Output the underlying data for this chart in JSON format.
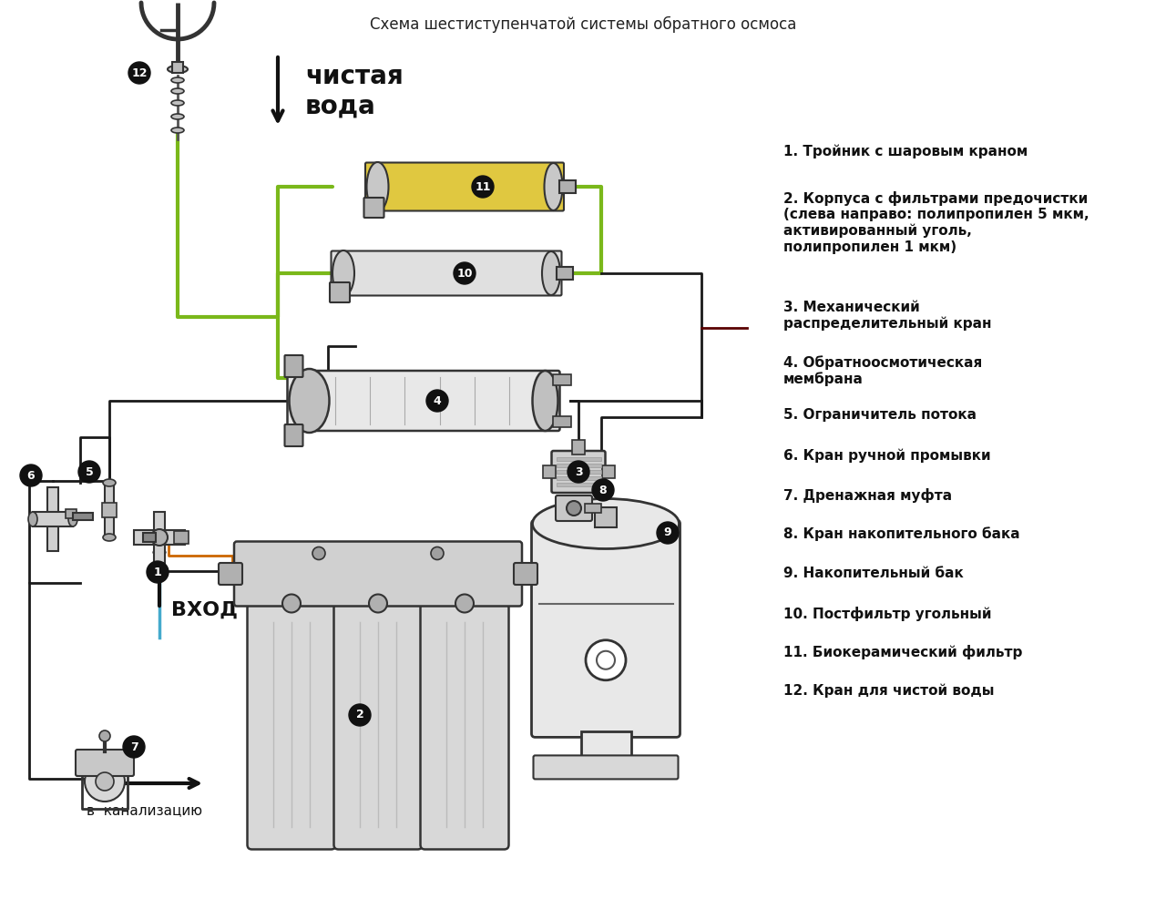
{
  "title": "Схема шестиступенчатой системы обратного осмоса",
  "bg_color": "#ffffff",
  "legend_items": [
    "1. Тройник с шаровым краном",
    "2. Корпуса с фильтрами предочистки\n(слева направо: полипропилен 5 мкм,\nактивированный уголь,\nполипропилен 1 мкм)",
    "3. Механический\nраспределительный кран",
    "4. Обратноосмотическая\nмембрана",
    "5. Ограничитель потока",
    "6. Кран ручной промывки",
    "7. Дренажная муфта",
    "8. Кран накопительного бака",
    "9. Накопительный бак",
    "10. Постфильтр угольный",
    "11. Биокерамический фильтр",
    "12. Кран для чистой воды"
  ],
  "green_line_color": "#7ab81a",
  "black_line_color": "#1a1a1a",
  "dark_red_line_color": "#5a0000",
  "orange_line_color": "#cc6600",
  "cyan_line_color": "#44aacc"
}
